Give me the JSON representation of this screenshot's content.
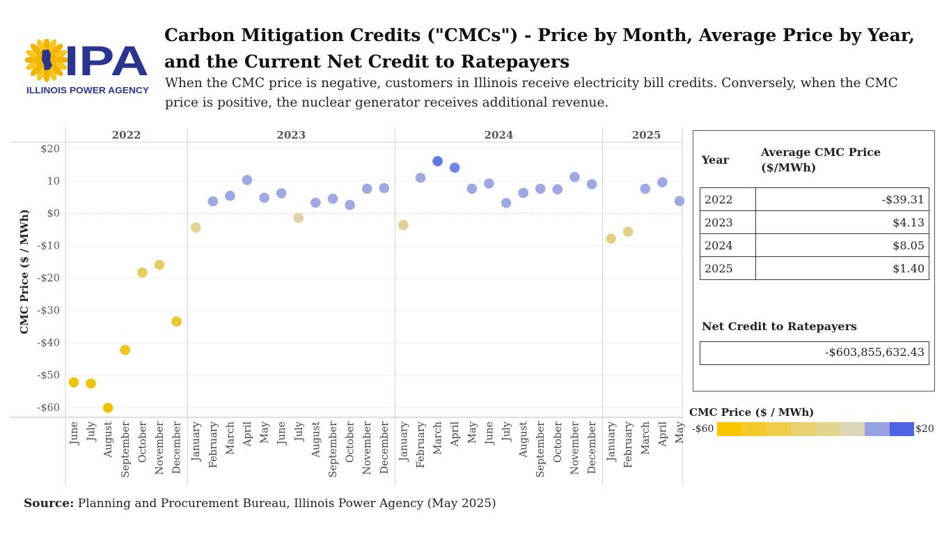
{
  "logo": {
    "brand": "IPA",
    "subtext": "ILLINOIS POWER AGENCY"
  },
  "header": {
    "title": "Carbon Mitigation Credits (\"CMCs\") - Price by Month, Average Price by Year, and the Current Net Credit to Ratepayers",
    "subtitle": "When the CMC price is negative, customers in Illinois receive electricity bill credits. Conversely, when the CMC price is positive, the nuclear generator receives additional revenue."
  },
  "chart_data": {
    "type": "scatter",
    "ylabel": "CMC Price ($ / MWh)",
    "ylim": [
      -63,
      22
    ],
    "yticks": [
      20,
      10,
      0,
      -10,
      -20,
      -30,
      -40,
      -50,
      -60
    ],
    "ytick_labels": [
      "$20",
      "10",
      "$0",
      "-$10",
      "-$20",
      "-$30",
      "-$40",
      "-$50",
      "-$60"
    ],
    "zero_line": "dotted",
    "grid": true,
    "color_scale": {
      "min": -60,
      "max": 20,
      "negative": "#f2c200",
      "neutral": "#ddd6b8",
      "positive": "#3f5ce0"
    },
    "panels": [
      {
        "year": "2022",
        "months": [
          "June",
          "July",
          "August",
          "September",
          "October",
          "November",
          "December"
        ],
        "values": [
          -52.2,
          -52.6,
          -60.1,
          -42.2,
          -18.3,
          -15.9,
          -33.4
        ]
      },
      {
        "year": "2023",
        "months": [
          "January",
          "February",
          "March",
          "April",
          "May",
          "June",
          "July",
          "August",
          "September",
          "October",
          "November",
          "December"
        ],
        "values": [
          -4.4,
          3.7,
          5.4,
          10.3,
          4.8,
          6.2,
          -1.4,
          3.3,
          4.5,
          2.6,
          7.6,
          7.8
        ]
      },
      {
        "year": "2024",
        "months": [
          "January",
          "February",
          "March",
          "April",
          "May",
          "June",
          "July",
          "August",
          "September",
          "October",
          "November",
          "December"
        ],
        "values": [
          -3.6,
          11.0,
          16.1,
          14.1,
          7.6,
          9.2,
          3.2,
          6.3,
          7.6,
          7.4,
          11.2,
          9.0
        ]
      },
      {
        "year": "2025",
        "months": [
          "January",
          "February",
          "March",
          "April",
          "May"
        ],
        "values": [
          -7.8,
          -5.7,
          7.6,
          9.6,
          3.8
        ]
      }
    ]
  },
  "averages": {
    "header_year": "Year",
    "header_price_line1": "Average CMC Price",
    "header_price_line2": "($/MWh)",
    "rows": [
      {
        "year": "2022",
        "price": "-$39.31"
      },
      {
        "year": "2023",
        "price": "$4.13"
      },
      {
        "year": "2024",
        "price": "$8.05"
      },
      {
        "year": "2025",
        "price": "$1.40"
      }
    ]
  },
  "net_credit": {
    "label": "Net Credit to Ratepayers",
    "value": "-$603,855,632.43"
  },
  "legend": {
    "title": "CMC Price ($ / MWh)",
    "min_label": "-$60",
    "max_label": "$20",
    "swatches": [
      "#f7c600",
      "#f3c92a",
      "#efcd4c",
      "#e9d171",
      "#e2d590",
      "#ddd6b8",
      "#98a1e0",
      "#4f63e6"
    ]
  },
  "source": {
    "label": "Source:",
    "text": " Planning and Procurement Bureau, Illinois Power Agency (May 2025)"
  }
}
